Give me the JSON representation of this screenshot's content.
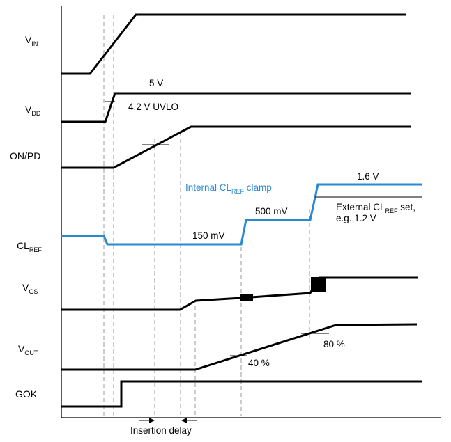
{
  "signals": {
    "vin": {
      "main": "V",
      "sub": "IN"
    },
    "vdd": {
      "main": "V",
      "sub": "DD"
    },
    "onpd": {
      "main": "ON/PD"
    },
    "clref": {
      "main": "CL",
      "sub": "REF"
    },
    "vgs": {
      "main": "V",
      "sub": "GS"
    },
    "vout": {
      "main": "V",
      "sub": "OUT"
    },
    "gok": {
      "main": "GOK"
    }
  },
  "annotations": {
    "vdd_5v": "5 V",
    "uvlo": "4.2 V UVLO",
    "clamp_150": "150 mV",
    "clamp_500": "500 mV",
    "clamp_16": "1.6 V",
    "internal_clamp_pre": "Internal CL",
    "internal_clamp_sub": "REF",
    "internal_clamp_post": " clamp",
    "external_pre": "External CL",
    "external_sub": "REF",
    "external_post": " set,",
    "external_line2": "e.g. 1.2 V",
    "pct_40": "40 %",
    "pct_80": "80 %",
    "insertion_delay": "Insertion delay"
  },
  "colors": {
    "waveform": "#000000",
    "clamp_blue": "#2a8ad1",
    "guide_dash": "#9a9a9a"
  }
}
